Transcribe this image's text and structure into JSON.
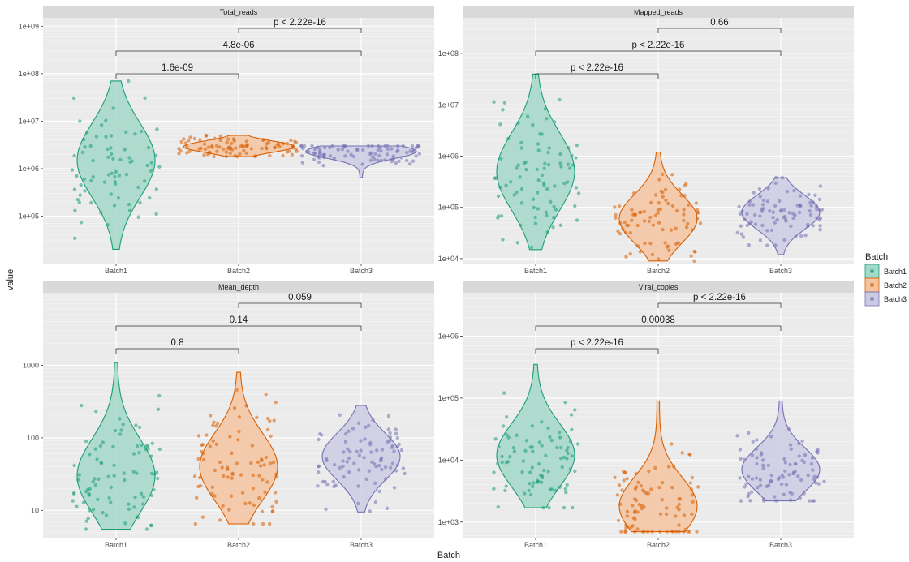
{
  "figure": {
    "y_axis_title": "value",
    "x_axis_title": "Batch"
  },
  "legend": {
    "title": "Batch",
    "items": [
      {
        "label": "Batch1",
        "color": "#1b9e77"
      },
      {
        "label": "Batch2",
        "color": "#d95f02"
      },
      {
        "label": "Batch3",
        "color": "#7570b3"
      }
    ]
  },
  "chart_data": [
    {
      "type": "violin",
      "title": "Total_reads",
      "categories": [
        "Batch1",
        "Batch2",
        "Batch3"
      ],
      "y_scale": "log10",
      "ylim": [
        10000,
        1500000000
      ],
      "y_ticks": [
        {
          "value": 100000,
          "label": "1e+05"
        },
        {
          "value": 1000000,
          "label": "1e+06"
        },
        {
          "value": 10000000,
          "label": "1e+07"
        },
        {
          "value": 100000000,
          "label": "1e+08"
        },
        {
          "value": 1000000000,
          "label": "1e+09"
        }
      ],
      "series": [
        {
          "name": "Batch1",
          "min": 20000,
          "max": 70000000,
          "mode": 1500000,
          "n_points": 75
        },
        {
          "name": "Batch2",
          "min": 1800000,
          "max": 5000000,
          "mode": 2900000,
          "n_points": 90
        },
        {
          "name": "Batch3",
          "min": 650000,
          "max": 3000000,
          "mode": 2300000,
          "n_points": 90
        }
      ],
      "comparisons": [
        {
          "groups": [
            "Batch1",
            "Batch2"
          ],
          "label": "1.6e-09"
        },
        {
          "groups": [
            "Batch1",
            "Batch3"
          ],
          "label": "4.8e-06"
        },
        {
          "groups": [
            "Batch2",
            "Batch3"
          ],
          "label": "p < 2.22e-16"
        }
      ]
    },
    {
      "type": "violin",
      "title": "Mapped_reads",
      "categories": [
        "Batch1",
        "Batch2",
        "Batch3"
      ],
      "y_scale": "log10",
      "ylim": [
        8000,
        500000000
      ],
      "y_ticks": [
        {
          "value": 10000,
          "label": "1e+04"
        },
        {
          "value": 100000,
          "label": "1e+05"
        },
        {
          "value": 1000000,
          "label": "1e+06"
        },
        {
          "value": 10000000,
          "label": "1e+07"
        },
        {
          "value": 100000000,
          "label": "1e+08"
        }
      ],
      "series": [
        {
          "name": "Batch1",
          "min": 15000,
          "max": 40000000,
          "mode": 500000,
          "n_points": 85
        },
        {
          "name": "Batch2",
          "min": 9000,
          "max": 1200000,
          "mode": 60000,
          "n_points": 85
        },
        {
          "name": "Batch3",
          "min": 12000,
          "max": 380000,
          "mode": 80000,
          "n_points": 90
        }
      ],
      "comparisons": [
        {
          "groups": [
            "Batch1",
            "Batch2"
          ],
          "label": "p < 2.22e-16"
        },
        {
          "groups": [
            "Batch1",
            "Batch3"
          ],
          "label": "p < 2.22e-16"
        },
        {
          "groups": [
            "Batch2",
            "Batch3"
          ],
          "label": "0.66"
        }
      ]
    },
    {
      "type": "violin",
      "title": "Mean_depth",
      "categories": [
        "Batch1",
        "Batch2",
        "Batch3"
      ],
      "y_scale": "log10",
      "ylim": [
        4.2,
        10000
      ],
      "y_ticks": [
        {
          "value": 10,
          "label": "10"
        },
        {
          "value": 100,
          "label": "100"
        },
        {
          "value": 1000,
          "label": "1000"
        }
      ],
      "series": [
        {
          "name": "Batch1",
          "min": 5.5,
          "max": 1100,
          "mode": 30,
          "n_points": 85
        },
        {
          "name": "Batch2",
          "min": 6.5,
          "max": 800,
          "mode": 40,
          "n_points": 90
        },
        {
          "name": "Batch3",
          "min": 9.5,
          "max": 280,
          "mode": 55,
          "n_points": 90
        }
      ],
      "comparisons": [
        {
          "groups": [
            "Batch1",
            "Batch2"
          ],
          "label": "0.8"
        },
        {
          "groups": [
            "Batch1",
            "Batch3"
          ],
          "label": "0.14"
        },
        {
          "groups": [
            "Batch2",
            "Batch3"
          ],
          "label": "0.059"
        }
      ]
    },
    {
      "type": "violin",
      "title": "Viral_copies",
      "categories": [
        "Batch1",
        "Batch2",
        "Batch3"
      ],
      "y_scale": "log10",
      "ylim": [
        560,
        5000000
      ],
      "y_ticks": [
        {
          "value": 1000,
          "label": "1e+03"
        },
        {
          "value": 10000,
          "label": "1e+04"
        },
        {
          "value": 100000,
          "label": "1e+05"
        },
        {
          "value": 1000000,
          "label": "1e+06"
        }
      ],
      "series": [
        {
          "name": "Batch1",
          "min": 1700,
          "max": 350000,
          "mode": 12000,
          "n_points": 85
        },
        {
          "name": "Batch2",
          "min": 700,
          "max": 90000,
          "mode": 1800,
          "n_points": 90
        },
        {
          "name": "Batch3",
          "min": 2200,
          "max": 90000,
          "mode": 7000,
          "n_points": 90
        }
      ],
      "comparisons": [
        {
          "groups": [
            "Batch1",
            "Batch2"
          ],
          "label": "p < 2.22e-16"
        },
        {
          "groups": [
            "Batch1",
            "Batch3"
          ],
          "label": "0.00038"
        },
        {
          "groups": [
            "Batch2",
            "Batch3"
          ],
          "label": "p < 2.22e-16"
        }
      ]
    }
  ]
}
